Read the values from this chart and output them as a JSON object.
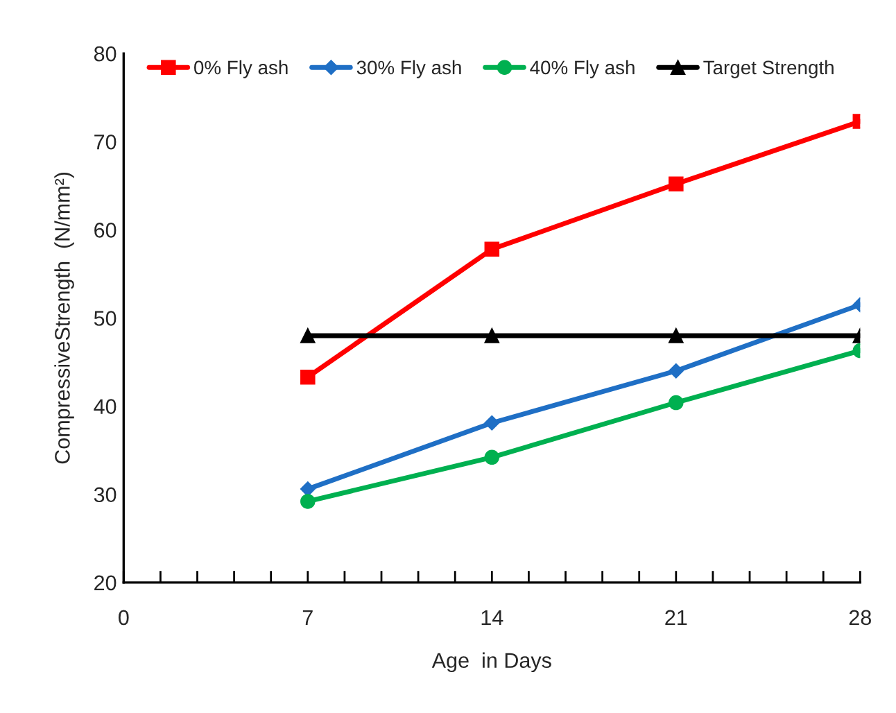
{
  "chart_data": {
    "type": "line",
    "xlabel": "Age  in Days",
    "ylabel": "CompressiveStrength  (N/mm²)",
    "x": [
      7,
      14,
      21,
      28
    ],
    "series": [
      {
        "name": "0% Fly ash",
        "color": "#ff0000",
        "marker": "square",
        "values": [
          43.3,
          57.8,
          65.2,
          72.3
        ]
      },
      {
        "name": "30% Fly ash",
        "color": "#1f6fc5",
        "marker": "diamond",
        "values": [
          30.6,
          38.1,
          44.0,
          51.5
        ]
      },
      {
        "name": "40% Fly ash",
        "color": "#00b050",
        "marker": "circle",
        "values": [
          29.2,
          34.2,
          40.4,
          46.3
        ]
      },
      {
        "name": "Target Strength",
        "color": "#000000",
        "marker": "triangle",
        "values": [
          48,
          48,
          48,
          48
        ]
      }
    ],
    "xlim": [
      0,
      28
    ],
    "ylim": [
      20,
      80
    ],
    "xticks": [
      0,
      {
        "value": 1.4,
        "label": null
      },
      {
        "value": 2.8,
        "label": null
      },
      {
        "value": 4.2,
        "label": null
      },
      {
        "value": 5.6,
        "label": null
      },
      7,
      {
        "value": 8.4,
        "label": null
      },
      {
        "value": 9.8,
        "label": null
      },
      {
        "value": 11.2,
        "label": null
      },
      {
        "value": 12.6,
        "label": null
      },
      14,
      {
        "value": 15.4,
        "label": null
      },
      {
        "value": 16.8,
        "label": null
      },
      {
        "value": 18.2,
        "label": null
      },
      {
        "value": 19.6,
        "label": null
      },
      21,
      {
        "value": 22.4,
        "label": null
      },
      {
        "value": 23.8,
        "label": null
      },
      {
        "value": 25.2,
        "label": null
      },
      {
        "value": 26.6,
        "label": null
      },
      28
    ],
    "yticks": [
      20,
      30,
      40,
      50,
      60,
      70,
      80
    ],
    "grid": false,
    "legend": "top",
    "line_style": "solid"
  }
}
